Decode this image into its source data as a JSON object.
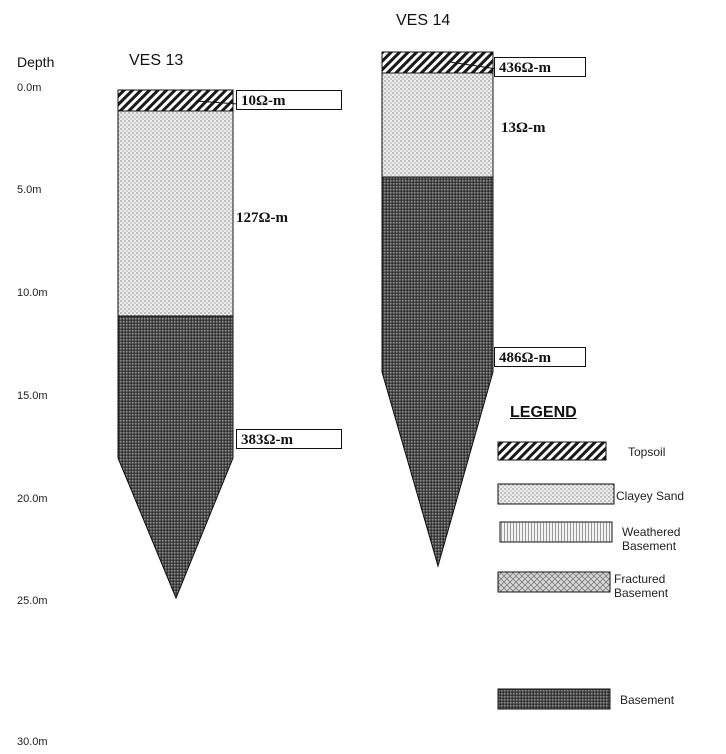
{
  "depth_axis": {
    "title": "Depth",
    "ticks": [
      "0.0m",
      "5.0m",
      "10.0m",
      "15.0m",
      "20.0m",
      "25.0m",
      "30.0m"
    ]
  },
  "soundings": [
    {
      "name": "VES 13",
      "layers": [
        {
          "pattern": "topsoil",
          "resistivity": "10Ω-m",
          "top_m": 0.0,
          "bottom_m": 1.0
        },
        {
          "pattern": "clayey-sand",
          "resistivity": "127Ω-m",
          "top_m": 1.0,
          "bottom_m": 11.0
        },
        {
          "pattern": "basement",
          "resistivity": "383Ω-m",
          "top_m": 11.0,
          "bottom_m": 17.8
        }
      ]
    },
    {
      "name": "VES 14",
      "layers": [
        {
          "pattern": "topsoil",
          "resistivity": "436Ω-m",
          "top_m": 0.0,
          "bottom_m": 1.0
        },
        {
          "pattern": "clayey-sand",
          "resistivity": "13Ω-m",
          "top_m": 1.0,
          "bottom_m": 6.0
        },
        {
          "pattern": "basement",
          "resistivity": "486Ω-m",
          "top_m": 6.0,
          "bottom_m": 15.4
        }
      ]
    }
  ],
  "legend": {
    "title": "LEGEND",
    "items": [
      {
        "pattern": "topsoil",
        "label": "Topsoil"
      },
      {
        "pattern": "clayey-sand",
        "label": "Clayey Sand"
      },
      {
        "pattern": "weathered",
        "label": "Weathered\nBasement"
      },
      {
        "pattern": "fractured",
        "label": "Fractured\nBasement"
      },
      {
        "pattern": "basement",
        "label": "Basement"
      }
    ]
  },
  "colors": {
    "outline": "#111111",
    "fill_dark": "#3a3a3a",
    "fill_light": "#cfcfcf"
  }
}
